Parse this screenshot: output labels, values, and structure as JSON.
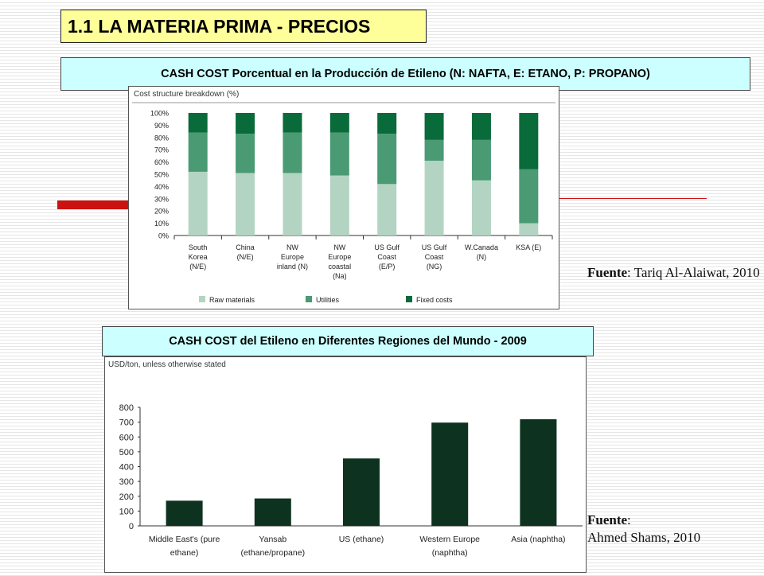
{
  "slide": {
    "title": "1.1 LA MATERIA PRIMA - PRECIOS",
    "banner1": "CASH COST Porcentual en la Producción de Etileno (N: NAFTA, E: ETANO, P: PROPANO)",
    "banner2": "CASH COST  del Etileno en Diferentes Regiones del Mundo - 2009",
    "source1_label": "Fuente",
    "source1_text": ": Tariq Al-Alaiwat, 2010",
    "source2_label": "Fuente",
    "source2_text": ":",
    "source2_author": "Ahmed Shams, 2010"
  },
  "colors": {
    "raw_materials": "#b3d4c2",
    "utilities": "#4a9a74",
    "fixed_costs": "#0a6b3a",
    "cash_cost_bar": "#0d3320",
    "title_bg": "#ffff99",
    "banner_bg": "#ccffff",
    "accent_red": "#cc1111"
  },
  "chart_data": [
    {
      "type": "bar",
      "stacked": true,
      "title": "Cost structure breakdown (%)",
      "categories": [
        [
          "South",
          "Korea",
          "(N/E)"
        ],
        [
          "China",
          "(N/E)"
        ],
        [
          "NW",
          "Europe",
          "inland (N)"
        ],
        [
          "NW",
          "Europe",
          "coastal",
          "(Na)"
        ],
        [
          "US Gulf",
          "Coast",
          "(E/P)"
        ],
        [
          "US Gulf",
          "Coast",
          "(NG)"
        ],
        [
          "W.Canada",
          "(N)"
        ],
        [
          "KSA (E)"
        ]
      ],
      "y_ticks": [
        "0%",
        "10%",
        "20%",
        "30%",
        "40%",
        "50%",
        "60%",
        "70%",
        "80%",
        "90%",
        "100%"
      ],
      "ylim": [
        0,
        100
      ],
      "legend_position": "bottom",
      "series": [
        {
          "name": "Raw materials",
          "values": [
            52,
            51,
            51,
            49,
            42,
            61,
            45,
            10
          ]
        },
        {
          "name": "Utilities",
          "values": [
            32,
            32,
            33,
            35,
            41,
            17,
            33,
            44
          ]
        },
        {
          "name": "Fixed costs",
          "values": [
            16,
            17,
            16,
            16,
            17,
            22,
            22,
            46
          ]
        }
      ]
    },
    {
      "type": "bar",
      "title": "USD/ton, unless otherwise stated",
      "categories": [
        [
          "Middle East's (pure",
          "ethane)"
        ],
        [
          "Yansab",
          "(ethane/propane)"
        ],
        [
          "US (ethane)"
        ],
        [
          "Western Europe",
          "(naphtha)"
        ],
        [
          "Asia (naphtha)"
        ]
      ],
      "values": [
        170,
        185,
        455,
        697,
        720
      ],
      "y_ticks": [
        "0",
        "100",
        "200",
        "300",
        "400",
        "500",
        "600",
        "700",
        "800"
      ],
      "ylim": [
        0,
        800
      ]
    }
  ]
}
